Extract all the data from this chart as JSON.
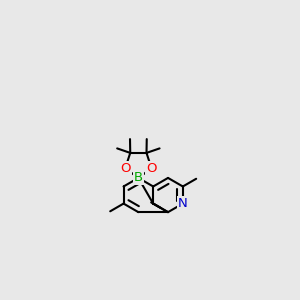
{
  "bg_color": "#e8e8e8",
  "bond_color": "#000000",
  "bond_width": 1.5,
  "atom_colors": {
    "N": "#0000cc",
    "O": "#ff0000",
    "B": "#00aa00",
    "C": "#000000"
  },
  "font_size": 9.5,
  "bl": 0.38
}
